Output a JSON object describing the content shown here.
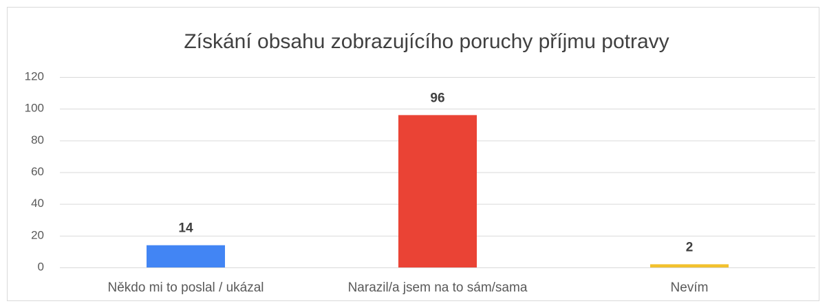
{
  "chart_data": {
    "type": "bar",
    "title": "Získání obsahu zobrazujícího poruchy příjmu potravy",
    "categories": [
      "Někdo mi to poslal / ukázal",
      "Narazil/a jsem na to sám/sama",
      "Nevím"
    ],
    "values": [
      14,
      96,
      2
    ],
    "colors": [
      "#4285f4",
      "#ea4335",
      "#f2c12e"
    ],
    "ylim": [
      0,
      120
    ],
    "yticks": [
      0,
      20,
      40,
      60,
      80,
      100,
      120
    ],
    "grid": true
  }
}
